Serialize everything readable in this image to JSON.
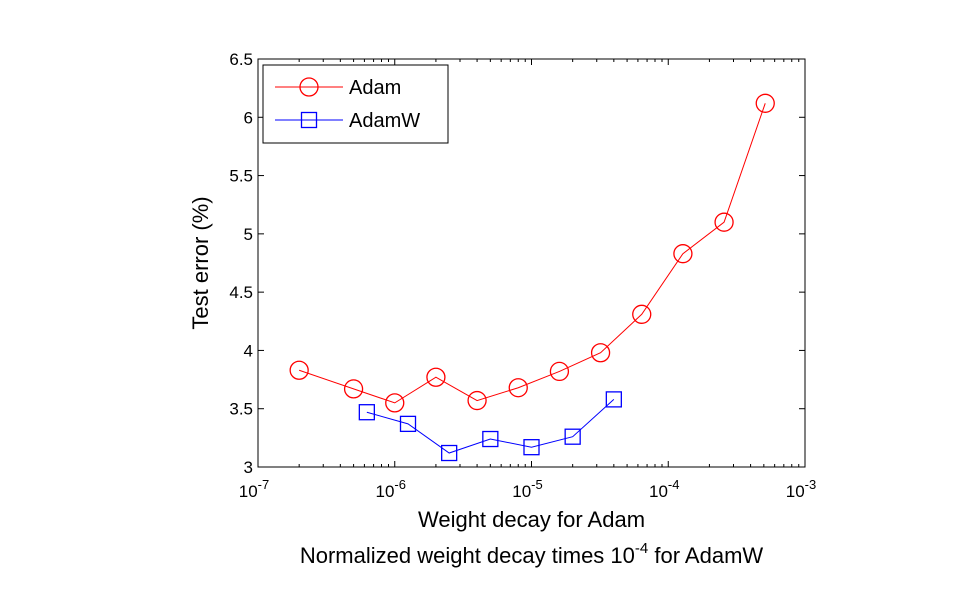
{
  "chart_data": {
    "type": "line",
    "title": "",
    "xscale": "log",
    "xlim": [
      1e-07,
      0.001
    ],
    "ylim": [
      3,
      6.5
    ],
    "grid": false,
    "legend_position": "top-left",
    "ylabel": "Test error (%)",
    "xlabel_line1": "Weight decay for Adam",
    "xlabel_line2_prefix": "Normalized weight decay times 10",
    "xlabel_line2_sup": "-4",
    "xlabel_line2_suffix": " for AdamW",
    "yticks": [
      {
        "value": 3,
        "label": "3"
      },
      {
        "value": 3.5,
        "label": "3.5"
      },
      {
        "value": 4,
        "label": "4"
      },
      {
        "value": 4.5,
        "label": "4.5"
      },
      {
        "value": 5,
        "label": "5"
      },
      {
        "value": 5.5,
        "label": "5.5"
      },
      {
        "value": 6,
        "label": "6"
      },
      {
        "value": 6.5,
        "label": "6.5"
      }
    ],
    "xticks": [
      {
        "value": 1e-07,
        "base": "10",
        "exp": "-7"
      },
      {
        "value": 1e-06,
        "base": "10",
        "exp": "-6"
      },
      {
        "value": 1e-05,
        "base": "10",
        "exp": "-5"
      },
      {
        "value": 0.0001,
        "base": "10",
        "exp": "-4"
      },
      {
        "value": 0.001,
        "base": "10",
        "exp": "-3"
      }
    ],
    "series": [
      {
        "name": "Adam",
        "color": "#ff0000",
        "marker": "circle",
        "x": [
          2e-07,
          5e-07,
          1e-06,
          2e-06,
          4e-06,
          8e-06,
          1.6e-05,
          3.2e-05,
          6.4e-05,
          0.000128,
          0.000256,
          0.000512
        ],
        "y": [
          3.83,
          3.67,
          3.55,
          3.77,
          3.57,
          3.68,
          3.82,
          3.98,
          4.31,
          4.83,
          5.1,
          6.12
        ]
      },
      {
        "name": "AdamW",
        "color": "#0000ff",
        "marker": "square",
        "x": [
          6.25e-07,
          1.25e-06,
          2.5e-06,
          5e-06,
          1e-05,
          2e-05,
          4e-05
        ],
        "y": [
          3.47,
          3.37,
          3.12,
          3.24,
          3.17,
          3.26,
          3.58
        ]
      }
    ]
  }
}
